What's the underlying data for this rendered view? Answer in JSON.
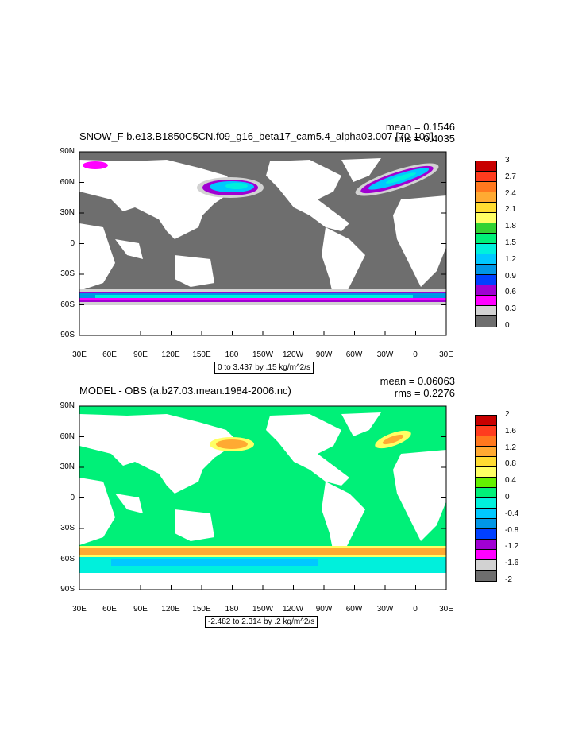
{
  "top": {
    "title": "SNOW_F b.e13.B1850C5CN.f09_g16_beta17_cam5.4_alpha03.007 [70-100]",
    "mean": "mean = 0.1546",
    "rms": "rms = 0.4035",
    "contour_info": "0 to 3.437 by .15 kg/m^2/s",
    "colorbar": {
      "labels": [
        "3",
        "2.7",
        "2.4",
        "2.1",
        "1.8",
        "1.5",
        "1.2",
        "0.9",
        "0.6",
        "0.3",
        "0"
      ],
      "colors": [
        "#c80000",
        "#ff3c1e",
        "#ff781e",
        "#ffaa32",
        "#ffdc32",
        "#ffff64",
        "#32d232",
        "#00f078",
        "#00f0dc",
        "#00c8ff",
        "#0096e6",
        "#0040ff",
        "#a000d2",
        "#ff00ff",
        "#d2d2d2",
        "#6e6e6e"
      ]
    }
  },
  "bottom": {
    "title": "MODEL - OBS (a.b27.03.mean.1984-2006.nc)",
    "mean": "mean = 0.06063",
    "rms": "rms = 0.2276",
    "contour_info": "-2.482 to 2.314 by .2 kg/m^2/s",
    "colorbar": {
      "labels": [
        "2",
        "1.6",
        "1.2",
        "0.8",
        "0.4",
        "0",
        "-0.4",
        "-0.8",
        "-1.2",
        "-1.6",
        "-2"
      ],
      "colors": [
        "#c80000",
        "#ff3c1e",
        "#ff781e",
        "#ffaa32",
        "#ffdc32",
        "#ffff64",
        "#64f000",
        "#00f078",
        "#00f0dc",
        "#00c8ff",
        "#0096e6",
        "#0040ff",
        "#a000d2",
        "#ff00ff",
        "#d2d2d2",
        "#6e6e6e"
      ]
    }
  },
  "axes": {
    "lat_labels": [
      "90N",
      "60N",
      "30N",
      "0",
      "30S",
      "60S",
      "90S"
    ],
    "lon_labels": [
      "30E",
      "60E",
      "90E",
      "120E",
      "150E",
      "180",
      "150W",
      "120W",
      "90W",
      "60W",
      "30W",
      "0",
      "30E"
    ]
  }
}
